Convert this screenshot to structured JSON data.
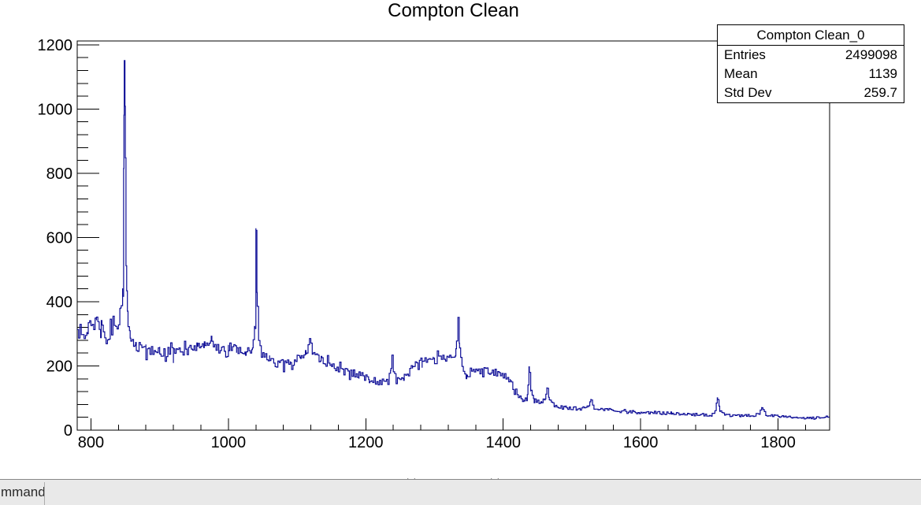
{
  "title": "Compton Clean",
  "stats_box": {
    "title": "Compton Clean_0",
    "rows": [
      {
        "label": "Entries",
        "value": "2499098"
      },
      {
        "label": "Mean",
        "value": "1139"
      },
      {
        "label": "Std Dev",
        "value": "259.7"
      }
    ]
  },
  "bottom_bar": {
    "command_label": "mmand"
  },
  "chart_data": {
    "type": "line",
    "title": "Compton Clean",
    "xlabel": "",
    "ylabel": "",
    "xlim": [
      780,
      1875
    ],
    "ylim": [
      0,
      1212
    ],
    "x_major_ticks": [
      800,
      1000,
      1200,
      1400,
      1600,
      1800
    ],
    "x_major_step": 200,
    "x_minor_step": 40,
    "y_major_ticks": [
      0,
      200,
      400,
      600,
      800,
      1000,
      1200
    ],
    "y_major_step": 200,
    "y_minor_step": 40,
    "grid": "off",
    "legend": "none",
    "line_color": "#0d0d96",
    "bin_width": 2,
    "noise_seed": 987654321,
    "anchors": [
      [
        780,
        300,
        28
      ],
      [
        795,
        315,
        28
      ],
      [
        808,
        345,
        26
      ],
      [
        815,
        330,
        26
      ],
      [
        822,
        290,
        24
      ],
      [
        830,
        310,
        24
      ],
      [
        838,
        330,
        22
      ],
      [
        843,
        375,
        20
      ],
      [
        846,
        430,
        14
      ],
      [
        847.5,
        820,
        8
      ],
      [
        848.5,
        1150,
        4
      ],
      [
        849.5,
        1010,
        8
      ],
      [
        851,
        520,
        10
      ],
      [
        853,
        350,
        12
      ],
      [
        857,
        290,
        15
      ],
      [
        865,
        265,
        18
      ],
      [
        880,
        250,
        18
      ],
      [
        900,
        248,
        18
      ],
      [
        920,
        240,
        18
      ],
      [
        940,
        248,
        18
      ],
      [
        955,
        255,
        18
      ],
      [
        965,
        270,
        16
      ],
      [
        975,
        262,
        18
      ],
      [
        990,
        252,
        18
      ],
      [
        1000,
        262,
        18
      ],
      [
        1012,
        248,
        16
      ],
      [
        1025,
        240,
        14
      ],
      [
        1035,
        255,
        12
      ],
      [
        1038.5,
        330,
        8
      ],
      [
        1040,
        625,
        4
      ],
      [
        1041.5,
        430,
        8
      ],
      [
        1044,
        280,
        10
      ],
      [
        1048,
        235,
        14
      ],
      [
        1060,
        220,
        15
      ],
      [
        1075,
        205,
        15
      ],
      [
        1090,
        212,
        15
      ],
      [
        1105,
        228,
        14
      ],
      [
        1113,
        240,
        12
      ],
      [
        1118,
        285,
        7
      ],
      [
        1123,
        235,
        10
      ],
      [
        1135,
        222,
        14
      ],
      [
        1150,
        200,
        14
      ],
      [
        1170,
        182,
        13
      ],
      [
        1190,
        172,
        12
      ],
      [
        1205,
        158,
        11
      ],
      [
        1220,
        150,
        11
      ],
      [
        1232,
        152,
        10
      ],
      [
        1236.5,
        195,
        6
      ],
      [
        1238,
        232,
        4
      ],
      [
        1240,
        185,
        6
      ],
      [
        1244,
        160,
        9
      ],
      [
        1255,
        172,
        10
      ],
      [
        1268,
        200,
        11
      ],
      [
        1282,
        215,
        12
      ],
      [
        1298,
        228,
        12
      ],
      [
        1312,
        225,
        12
      ],
      [
        1325,
        228,
        10
      ],
      [
        1331,
        240,
        8
      ],
      [
        1334,
        350,
        4
      ],
      [
        1336.5,
        255,
        6
      ],
      [
        1340,
        195,
        8
      ],
      [
        1347,
        172,
        9
      ],
      [
        1358,
        182,
        11
      ],
      [
        1372,
        185,
        11
      ],
      [
        1386,
        180,
        11
      ],
      [
        1400,
        172,
        11
      ],
      [
        1410,
        150,
        10
      ],
      [
        1420,
        112,
        9
      ],
      [
        1430,
        92,
        8
      ],
      [
        1435,
        105,
        6
      ],
      [
        1437.5,
        200,
        4
      ],
      [
        1440,
        120,
        6
      ],
      [
        1445,
        92,
        7
      ],
      [
        1455,
        88,
        7
      ],
      [
        1461,
        100,
        6
      ],
      [
        1463.5,
        135,
        4
      ],
      [
        1467,
        95,
        6
      ],
      [
        1475,
        75,
        6
      ],
      [
        1490,
        70,
        6
      ],
      [
        1510,
        67,
        6
      ],
      [
        1524,
        72,
        5
      ],
      [
        1527.5,
        97,
        4
      ],
      [
        1532,
        70,
        5
      ],
      [
        1550,
        63,
        6
      ],
      [
        1580,
        58,
        6
      ],
      [
        1610,
        55,
        5
      ],
      [
        1645,
        52,
        5
      ],
      [
        1680,
        49,
        5
      ],
      [
        1703,
        47,
        4
      ],
      [
        1708,
        58,
        4
      ],
      [
        1711.5,
        103,
        3
      ],
      [
        1715,
        60,
        4
      ],
      [
        1722,
        46,
        4
      ],
      [
        1745,
        44,
        4
      ],
      [
        1765,
        46,
        4
      ],
      [
        1772,
        52,
        4
      ],
      [
        1776.5,
        72,
        3
      ],
      [
        1782,
        48,
        4
      ],
      [
        1800,
        42,
        4
      ],
      [
        1830,
        39,
        4
      ],
      [
        1855,
        38,
        4
      ],
      [
        1875,
        42,
        4
      ]
    ]
  }
}
